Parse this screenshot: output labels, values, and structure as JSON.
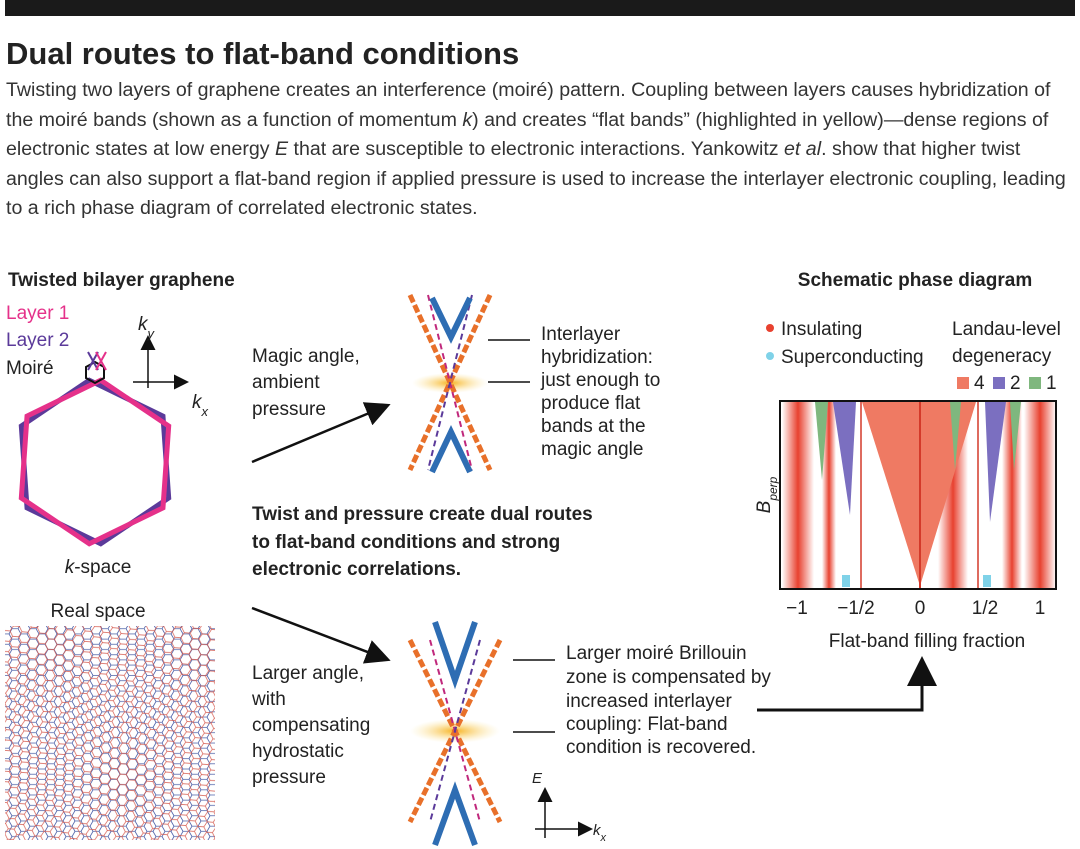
{
  "header": {
    "title": "Dual routes to flat-band conditions",
    "intro": [
      "Twisting two layers of graphene creates an interference (moiré) pattern. Coupling between layers causes hybridization of the moiré bands (shown as a function of momentum ",
      "k",
      ") and creates “flat bands” (highlighted in yellow)—dense regions of electronic states at low energy ",
      "E",
      " that are susceptible to electronic interactions. Yankowitz ",
      "et al",
      ". show that higher twist angles can also support a flat-band region if applied pressure is used to increase the interlayer electronic coupling, leading to a rich phase diagram of correlated electronic states."
    ]
  },
  "left": {
    "title": "Twisted bilayer graphene",
    "legend": [
      "Layer 1",
      "Layer 2",
      "Moiré"
    ],
    "ky": [
      "k",
      "y"
    ],
    "kx": [
      "k",
      "x"
    ],
    "kspace": [
      "k",
      "-space"
    ],
    "real_space": "Real space"
  },
  "middle": {
    "top_condition": [
      "Magic angle,",
      "ambient",
      "pressure"
    ],
    "top_note": [
      "Interlayer",
      "hybridization:",
      "just enough to",
      "produce flat",
      "bands at the",
      "magic angle"
    ],
    "summary": [
      "Twist and pressure create dual routes",
      "to flat-band conditions and strong",
      "electronic correlations."
    ],
    "bottom_condition": [
      "Larger angle,",
      "with",
      "compensating",
      "hydrostatic",
      "pressure"
    ],
    "bottom_note": [
      "Larger moiré Brillouin",
      "zone is compensated by",
      "increased interlayer",
      "coupling: Flat-band",
      "condition is recovered."
    ],
    "axis_e": "E",
    "axis_kx": [
      "k",
      "x"
    ]
  },
  "right": {
    "title": "Schematic phase diagram",
    "legend": [
      "Insulating",
      "Superconducting"
    ],
    "landau_title": [
      "Landau-level",
      "degeneracy"
    ],
    "landau_levels": [
      "4",
      "2",
      "1"
    ],
    "y_label": [
      "B",
      "perp"
    ],
    "x_ticks": [
      "−1",
      "−1/2",
      "0",
      "1/2",
      "1"
    ],
    "x_label": "Flat-band filling fraction"
  }
}
